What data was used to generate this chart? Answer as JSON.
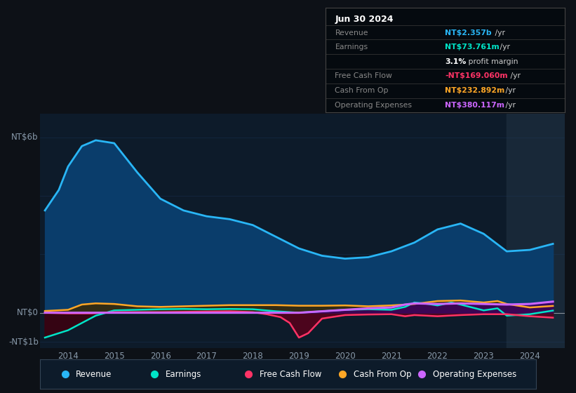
{
  "bg_color": "#0d1117",
  "plot_bg_color": "#0d1b2a",
  "grid_color": "#1e3a5f",
  "ylabel_nt6b": "NT$6b",
  "ylabel_nt0": "NT$0",
  "ylabel_ntm1b": "-NT$1b",
  "info_box": {
    "date": "Jun 30 2024",
    "rows": [
      {
        "label": "Revenue",
        "value": "NT$2.357b",
        "suffix": " /yr",
        "value_color": "#29b6f6"
      },
      {
        "label": "Earnings",
        "value": "NT$73.761m",
        "suffix": " /yr",
        "value_color": "#00e5c8"
      },
      {
        "label": "",
        "value": "3.1%",
        "suffix": " profit margin",
        "value_color": "#ffffff"
      },
      {
        "label": "Free Cash Flow",
        "value": "-NT$169.060m",
        "suffix": " /yr",
        "value_color": "#ff3366"
      },
      {
        "label": "Cash From Op",
        "value": "NT$232.892m",
        "suffix": " /yr",
        "value_color": "#ffa726"
      },
      {
        "label": "Operating Expenses",
        "value": "NT$380.117m",
        "suffix": " /yr",
        "value_color": "#cc66ff"
      }
    ]
  },
  "legend": [
    {
      "label": "Revenue",
      "color": "#29b6f6"
    },
    {
      "label": "Earnings",
      "color": "#00e5c8"
    },
    {
      "label": "Free Cash Flow",
      "color": "#ff3366"
    },
    {
      "label": "Cash From Op",
      "color": "#ffa726"
    },
    {
      "label": "Operating Expenses",
      "color": "#cc66ff"
    }
  ],
  "revenue": {
    "x": [
      2013.5,
      2013.8,
      2014.0,
      2014.3,
      2014.6,
      2015.0,
      2015.5,
      2016.0,
      2016.5,
      2017.0,
      2017.5,
      2018.0,
      2018.5,
      2019.0,
      2019.5,
      2020.0,
      2020.5,
      2021.0,
      2021.5,
      2022.0,
      2022.5,
      2023.0,
      2023.5,
      2024.0,
      2024.5
    ],
    "y": [
      3.5,
      4.2,
      5.0,
      5.7,
      5.9,
      5.8,
      4.8,
      3.9,
      3.5,
      3.3,
      3.2,
      3.0,
      2.6,
      2.2,
      1.95,
      1.85,
      1.9,
      2.1,
      2.4,
      2.85,
      3.05,
      2.7,
      2.1,
      2.15,
      2.357
    ],
    "color": "#29b6f6",
    "fill_color": "#0a3d6b",
    "linewidth": 2.0
  },
  "earnings": {
    "x": [
      2013.5,
      2014.0,
      2014.3,
      2014.6,
      2015.0,
      2015.5,
      2016.0,
      2016.5,
      2017.0,
      2017.5,
      2018.0,
      2018.5,
      2019.0,
      2019.5,
      2020.0,
      2020.5,
      2021.0,
      2021.3,
      2021.5,
      2021.8,
      2022.0,
      2022.3,
      2022.5,
      2023.0,
      2023.3,
      2023.5,
      2024.0,
      2024.5
    ],
    "y": [
      -0.85,
      -0.6,
      -0.35,
      -0.1,
      0.08,
      0.1,
      0.12,
      0.13,
      0.12,
      0.13,
      0.12,
      0.05,
      0.0,
      0.05,
      0.1,
      0.12,
      0.1,
      0.2,
      0.35,
      0.3,
      0.25,
      0.35,
      0.28,
      0.08,
      0.15,
      -0.1,
      -0.05,
      0.074
    ],
    "color": "#00e5c8",
    "fill_color": "#004d40",
    "linewidth": 1.8
  },
  "free_cash_flow": {
    "x": [
      2013.5,
      2014.0,
      2014.5,
      2015.0,
      2015.5,
      2016.0,
      2016.5,
      2017.0,
      2017.5,
      2018.0,
      2018.3,
      2018.6,
      2018.8,
      2019.0,
      2019.2,
      2019.5,
      2020.0,
      2020.5,
      2021.0,
      2021.3,
      2021.5,
      2022.0,
      2022.5,
      2023.0,
      2023.5,
      2024.0,
      2024.5
    ],
    "y": [
      0.0,
      -0.02,
      -0.02,
      0.02,
      0.02,
      0.02,
      0.03,
      0.04,
      0.05,
      0.02,
      -0.05,
      -0.15,
      -0.35,
      -0.85,
      -0.7,
      -0.2,
      -0.08,
      -0.06,
      -0.05,
      -0.12,
      -0.08,
      -0.12,
      -0.08,
      -0.05,
      -0.05,
      -0.12,
      -0.169
    ],
    "color": "#ff3366",
    "fill_color": "#5d001a",
    "linewidth": 1.8
  },
  "cash_from_op": {
    "x": [
      2013.5,
      2014.0,
      2014.3,
      2014.6,
      2015.0,
      2015.5,
      2016.0,
      2016.5,
      2017.0,
      2017.5,
      2018.0,
      2018.5,
      2019.0,
      2019.5,
      2020.0,
      2020.5,
      2021.0,
      2021.5,
      2022.0,
      2022.5,
      2023.0,
      2023.3,
      2023.5,
      2024.0,
      2024.5
    ],
    "y": [
      0.06,
      0.1,
      0.28,
      0.32,
      0.3,
      0.22,
      0.2,
      0.22,
      0.24,
      0.26,
      0.26,
      0.26,
      0.24,
      0.24,
      0.25,
      0.22,
      0.25,
      0.3,
      0.4,
      0.42,
      0.35,
      0.4,
      0.3,
      0.18,
      0.233
    ],
    "color": "#ffa726",
    "fill_color": "#3d2800",
    "linewidth": 1.8
  },
  "op_expenses": {
    "x": [
      2013.5,
      2014.0,
      2014.5,
      2015.0,
      2015.5,
      2016.0,
      2016.5,
      2017.0,
      2017.5,
      2018.0,
      2018.5,
      2019.0,
      2019.5,
      2020.0,
      2020.5,
      2021.0,
      2021.3,
      2021.5,
      2022.0,
      2022.5,
      2023.0,
      2023.5,
      2024.0,
      2024.5
    ],
    "y": [
      0.0,
      0.0,
      0.0,
      0.0,
      0.0,
      0.0,
      0.0,
      0.0,
      0.0,
      0.0,
      0.0,
      0.0,
      0.05,
      0.1,
      0.15,
      0.18,
      0.28,
      0.32,
      0.3,
      0.32,
      0.3,
      0.28,
      0.3,
      0.38
    ],
    "color": "#cc66ff",
    "fill_color": "#3d0060",
    "linewidth": 2.2
  },
  "shaded_region_start": 2023.5,
  "x_lim": [
    2013.4,
    2024.75
  ],
  "y_lim": [
    -1.2,
    6.8
  ]
}
